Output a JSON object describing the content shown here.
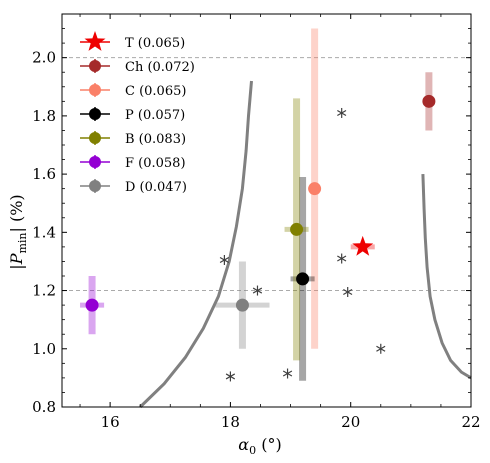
{
  "chart_data": {
    "type": "scatter",
    "xlabel": "α₀ (°)",
    "ylabel": "|P_min| (%)",
    "xlim": [
      15.2,
      22
    ],
    "ylim": [
      0.8,
      2.15
    ],
    "x_ticks": [
      "16",
      "18",
      "20",
      "22"
    ],
    "y_ticks": [
      "0.8",
      "1.0",
      "1.2",
      "1.4",
      "1.6",
      "1.8",
      "2.0"
    ],
    "x_tick_values": [
      16,
      18,
      20,
      22
    ],
    "y_tick_values": [
      0.8,
      1.0,
      1.2,
      1.4,
      1.6,
      1.8,
      2.0
    ],
    "hlines": [
      2.0,
      1.2
    ],
    "legend_position": "upper-left",
    "series": [
      {
        "name": "T (0.065)",
        "marker": "star",
        "color": "#ee0000",
        "x": 20.2,
        "y": 1.35,
        "xerr": 0.2,
        "yerr_low": 0.01,
        "yerr_high": 0.01
      },
      {
        "name": "Ch (0.072)",
        "marker": "circle",
        "color": "#a52a2a",
        "x": 21.3,
        "y": 1.85,
        "xerr": 0.02,
        "yerr_low": 0.1,
        "yerr_high": 0.1
      },
      {
        "name": "C (0.065)",
        "marker": "circle",
        "color": "#fa8068",
        "x": 19.4,
        "y": 1.55,
        "xerr": 0.02,
        "yerr_low": 0.55,
        "yerr_high": 0.55
      },
      {
        "name": "P (0.057)",
        "marker": "circle",
        "color": "#000000",
        "x": 19.2,
        "y": 1.24,
        "xerr": 0.2,
        "yerr_low": 0.35,
        "yerr_high": 0.35
      },
      {
        "name": "B (0.083)",
        "marker": "circle",
        "color": "#808000",
        "x": 19.1,
        "y": 1.41,
        "xerr": 0.2,
        "yerr_low": 0.45,
        "yerr_high": 0.45
      },
      {
        "name": "F (0.058)",
        "marker": "circle",
        "color": "#9400d3",
        "x": 15.7,
        "y": 1.15,
        "xerr": 0.2,
        "yerr_low": 0.1,
        "yerr_high": 0.1
      },
      {
        "name": "D (0.047)",
        "marker": "circle",
        "color": "#808080",
        "x": 18.2,
        "y": 1.15,
        "xerr": 0.45,
        "yerr_low": 0.15,
        "yerr_high": 0.15
      }
    ],
    "asterisks": [
      {
        "x": 17.9,
        "y": 1.305
      },
      {
        "x": 18.45,
        "y": 1.2
      },
      {
        "x": 18.0,
        "y": 0.905
      },
      {
        "x": 18.95,
        "y": 0.915
      },
      {
        "x": 19.85,
        "y": 1.81
      },
      {
        "x": 19.85,
        "y": 1.31
      },
      {
        "x": 19.95,
        "y": 1.195
      },
      {
        "x": 20.5,
        "y": 1.0
      }
    ],
    "curves": [
      {
        "color": "#808080",
        "points": [
          [
            16.5,
            0.8
          ],
          [
            16.9,
            0.88
          ],
          [
            17.25,
            0.97
          ],
          [
            17.55,
            1.07
          ],
          [
            17.8,
            1.18
          ],
          [
            17.98,
            1.3
          ],
          [
            18.1,
            1.42
          ],
          [
            18.2,
            1.55
          ],
          [
            18.26,
            1.68
          ],
          [
            18.3,
            1.8
          ],
          [
            18.35,
            1.92
          ]
        ]
      },
      {
        "color": "#808080",
        "points": [
          [
            21.2,
            1.6
          ],
          [
            21.22,
            1.48
          ],
          [
            21.24,
            1.38
          ],
          [
            21.27,
            1.28
          ],
          [
            21.32,
            1.18
          ],
          [
            21.4,
            1.1
          ],
          [
            21.52,
            1.02
          ],
          [
            21.66,
            0.96
          ],
          [
            21.84,
            0.92
          ],
          [
            22.0,
            0.9
          ]
        ]
      }
    ]
  }
}
